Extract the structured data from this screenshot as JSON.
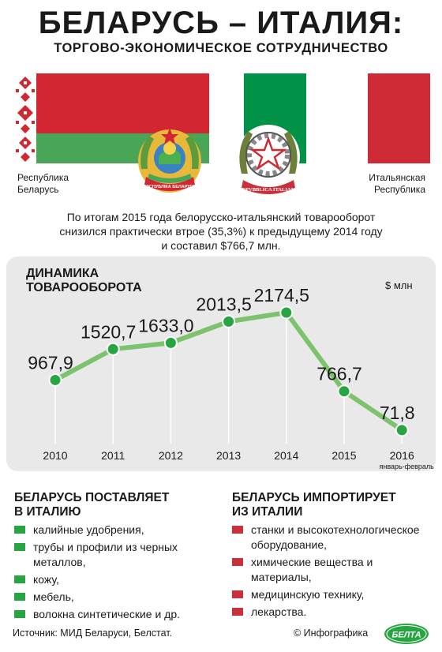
{
  "header": {
    "title": "БЕЛАРУСЬ – ИТАЛИЯ:",
    "subtitle": "ТОРГОВО-ЭКОНОМИЧЕСКОЕ СОТРУДНИЧЕСТВО"
  },
  "flags": {
    "belarus_caption": [
      "Республика",
      "Беларусь"
    ],
    "italy_caption": [
      "Итальянская",
      "Республика"
    ],
    "belarus_colors": {
      "red": "#d22630",
      "green": "#4aa657",
      "ornament": "#ffffff"
    },
    "italy_colors": {
      "green": "#009246",
      "white": "#ffffff",
      "red": "#ce2b37"
    },
    "belarus_emblem_ribbon": "РЭСПУБЛІКА БЕЛАРУСЬ",
    "italy_emblem_ribbon": "REPVBBLICA ITALIANA"
  },
  "intro": [
    "По итогам 2015 года белорусско-итальянский товарооборот",
    "снизился практически втрое (35,3%) к предыдущему 2014 году",
    "и составил $766,7 млн."
  ],
  "chart_data": {
    "type": "line",
    "title": [
      "ДИНАМИКА",
      "ТОВАРООБОРОТА"
    ],
    "unit": "$ млн",
    "categories": [
      "2010",
      "2011",
      "2012",
      "2013",
      "2014",
      "2015",
      "2016"
    ],
    "values": [
      967.9,
      1520.7,
      1633.0,
      2013.5,
      2174.5,
      766.7,
      71.8
    ],
    "value_labels": [
      "967,9",
      "1520,7",
      "1633,0",
      "2013,5",
      "2174,5",
      "766,7",
      "71,8"
    ],
    "category_notes": [
      "",
      "",
      "",
      "",
      "",
      "",
      "январь-февраль"
    ],
    "colors": {
      "line": "#7dc36e",
      "point": "#27a543",
      "panel": "#e9e9e9"
    }
  },
  "exports": {
    "heading": [
      "БЕЛАРУСЬ ПОСТАВЛЯЕТ",
      "В ИТАЛИЮ"
    ],
    "bullet_color": "#27a543",
    "items": [
      "калийные удобрения,",
      "трубы и профили из черных металлов,",
      "кожу,",
      "мебель,",
      "волокна синтетические  и др."
    ]
  },
  "imports": {
    "heading": [
      "БЕЛАРУСЬ ИМПОРТИРУЕТ",
      "ИЗ ИТАЛИИ"
    ],
    "bullet_color": "#c8313b",
    "items": [
      "станки и высокотехнологическое оборудование,",
      "химические вещества и материалы,",
      "медицинскую технику,",
      "лекарства."
    ]
  },
  "footer": {
    "source": "Источник: МИД Беларуси, Белстат.",
    "copyright": "© Инфографика",
    "logo_text": "БЕЛТА"
  }
}
